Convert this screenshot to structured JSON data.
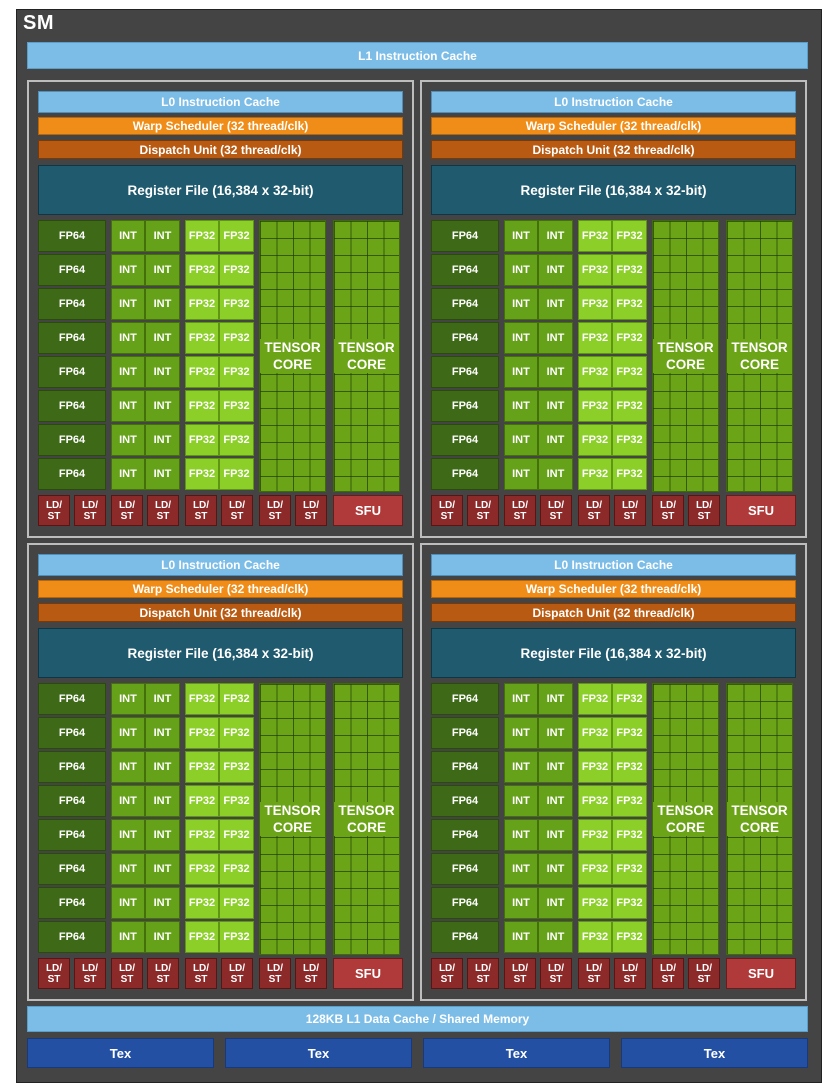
{
  "sm_title": "SM",
  "l1_instruction_cache": "L1 Instruction Cache",
  "partition": {
    "l0_instruction_cache": "L0 Instruction Cache",
    "warp_scheduler": "Warp Scheduler (32 thread/clk)",
    "dispatch_unit": "Dispatch Unit (32 thread/clk)",
    "register_file": "Register File (16,384 x 32-bit)",
    "fp64": "FP64",
    "int": "INT",
    "fp32": "FP32",
    "tensor_core_line1": "TENSOR",
    "tensor_core_line2": "CORE",
    "ld": "LD/",
    "st": "ST",
    "sfu": "SFU"
  },
  "partition_count": 4,
  "rows_per_partition": 8,
  "ldst_per_partition": 8,
  "l1_data_cache": "128KB L1 Data Cache / Shared Memory",
  "tex_units": [
    "Tex",
    "Tex",
    "Tex",
    "Tex"
  ],
  "colors": {
    "background": "#444444",
    "cache": "#7cbde8",
    "warp_scheduler": "#f08c18",
    "dispatch_unit": "#b85a12",
    "register_file": "#1f5a6e",
    "fp64": "#3e6a18",
    "int": "#66a11a",
    "fp32": "#8ccf28",
    "tensor_core": "#6ca418",
    "ldst": "#8c2a2a",
    "sfu": "#b03a3a",
    "tex": "#2450a3"
  }
}
